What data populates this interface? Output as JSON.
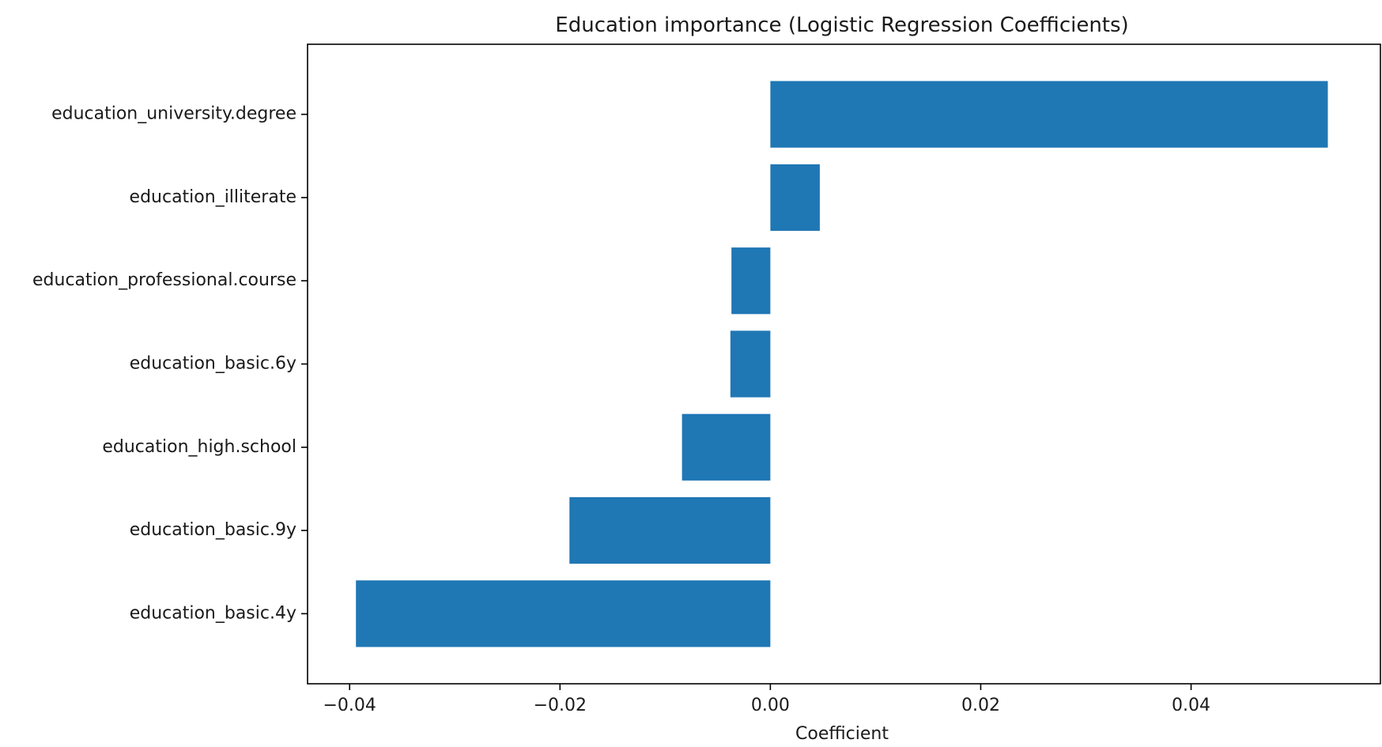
{
  "chart_data": {
    "type": "bar",
    "orientation": "horizontal",
    "title": "Education importance (Logistic Regression Coefficients)",
    "xlabel": "Coefficient",
    "ylabel": "",
    "categories": [
      "education_university.degree",
      "education_illiterate",
      "education_professional.course",
      "education_basic.6y",
      "education_high.school",
      "education_basic.9y",
      "education_basic.4y"
    ],
    "values": [
      0.053,
      0.0047,
      -0.0037,
      -0.0038,
      -0.0084,
      -0.0191,
      -0.0394
    ],
    "xlim": [
      -0.044,
      0.058
    ],
    "xticks": [
      -0.04,
      -0.02,
      0.0,
      0.02,
      0.04
    ],
    "xtick_labels": [
      "−0.04",
      "−0.02",
      "0.00",
      "0.02",
      "0.04"
    ],
    "bar_color": "#1f77b4",
    "grid": false,
    "legend": "none"
  }
}
